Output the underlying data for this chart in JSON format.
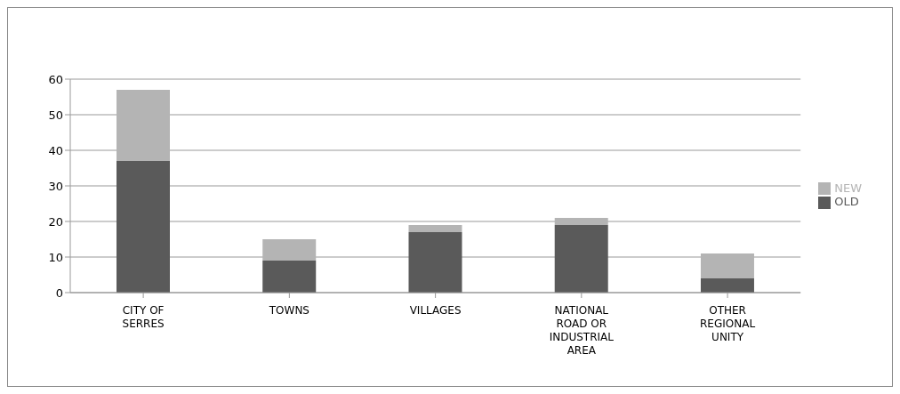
{
  "chart_data": {
    "type": "bar",
    "stacked": true,
    "categories": [
      "CITY OF SERRES",
      "TOWNS",
      "VILLAGES",
      "NATIONAL ROAD OR INDUSTRIAL AREA",
      "OTHER REGIONAL UNITY"
    ],
    "series": [
      {
        "name": "OLD",
        "color": "#5a5a5a",
        "values": [
          37,
          9,
          17,
          19,
          4
        ]
      },
      {
        "name": "NEW",
        "color": "#b4b4b4",
        "values": [
          20,
          6,
          2,
          2,
          7
        ]
      }
    ],
    "ylim": [
      0,
      60
    ],
    "yticks": [
      0,
      10,
      20,
      30,
      40,
      50,
      60
    ],
    "grid": "y",
    "legend": "right"
  }
}
